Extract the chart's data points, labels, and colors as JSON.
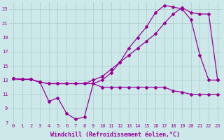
{
  "background_color": "#cce8e8",
  "grid_color": "#aacccc",
  "line_color": "#990099",
  "xlabel": "Windchill (Refroidissement éolien,°C)",
  "xlim": [
    -0.5,
    23.5
  ],
  "ylim": [
    7,
    24
  ],
  "yticks": [
    7,
    9,
    11,
    13,
    15,
    17,
    19,
    21,
    23
  ],
  "xticks": [
    0,
    1,
    2,
    3,
    4,
    5,
    6,
    7,
    8,
    9,
    10,
    11,
    12,
    13,
    14,
    15,
    16,
    17,
    18,
    19,
    20,
    21,
    22,
    23
  ],
  "line1_x": [
    0,
    1,
    2,
    3,
    4,
    5,
    6,
    7,
    8,
    9,
    10,
    11,
    12,
    13,
    14,
    15,
    16,
    17,
    18,
    19,
    20,
    21,
    22,
    23
  ],
  "line1_y": [
    13.2,
    13.1,
    13.1,
    12.7,
    12.5,
    12.5,
    12.5,
    12.5,
    12.5,
    12.5,
    12.0,
    12.0,
    12.0,
    12.0,
    12.0,
    12.0,
    12.0,
    12.0,
    11.5,
    11.3,
    11.0,
    11.0,
    11.0,
    11.0
  ],
  "line2_x": [
    0,
    1,
    2,
    3,
    4,
    5,
    6,
    7,
    8,
    9,
    10,
    11,
    12,
    13,
    14,
    15,
    16,
    17,
    18,
    19,
    20,
    21,
    22,
    23
  ],
  "line2_y": [
    13.2,
    13.1,
    13.1,
    12.7,
    12.5,
    12.5,
    12.5,
    12.5,
    12.5,
    13.0,
    13.5,
    14.5,
    15.5,
    16.5,
    17.5,
    18.5,
    19.5,
    21.0,
    22.3,
    23.2,
    22.5,
    22.3,
    22.3,
    13.0
  ],
  "line3_x": [
    0,
    1,
    2,
    3,
    4,
    5,
    6,
    7,
    8,
    9,
    10,
    11,
    12,
    13,
    14,
    15,
    16,
    17,
    18,
    19,
    20,
    21,
    22,
    23
  ],
  "line3_y": [
    13.2,
    13.1,
    13.1,
    12.7,
    10.0,
    10.5,
    8.3,
    7.5,
    7.8,
    12.5,
    13.0,
    14.0,
    15.5,
    17.5,
    19.0,
    20.5,
    22.5,
    23.5,
    23.3,
    23.0,
    21.5,
    16.5,
    13.0,
    13.0
  ],
  "marker": "D",
  "markersize": 2.0,
  "linewidth": 0.9,
  "tick_fontsize": 5.0,
  "xlabel_fontsize": 6.0
}
